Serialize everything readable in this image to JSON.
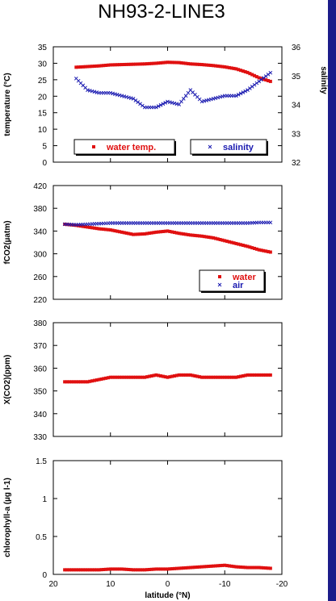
{
  "title": "NH93-2-LINE3",
  "colors": {
    "water": "#e01010",
    "salinity": "#1a1ab0",
    "air": "#1a1ab0",
    "sidebar": "#1c1c8a"
  },
  "x_axis": {
    "label": "latitude (°N)",
    "ticks": [
      "20",
      "10",
      "0",
      "-10",
      "-20"
    ],
    "range": [
      20,
      -20
    ]
  },
  "chart_data": [
    {
      "type": "scatter",
      "ylabel": "temperature (°C)",
      "ylabel_right": "salinity",
      "ylim": [
        0,
        35
      ],
      "yticks": [
        "0",
        "5",
        "10",
        "15",
        "20",
        "25",
        "30",
        "35"
      ],
      "ylim_right": [
        32,
        36
      ],
      "yticks_right": [
        "32",
        "33",
        "34",
        "35",
        "36"
      ],
      "legend": [
        {
          "label": "water temp.",
          "marker": "square"
        },
        {
          "label": "salinity",
          "marker": "x"
        }
      ],
      "series": [
        {
          "name": "water temp.",
          "axis": "left",
          "marker": "square",
          "x": [
            16,
            14,
            12,
            10,
            8,
            6,
            4,
            2,
            0,
            -2,
            -4,
            -6,
            -8,
            -10,
            -12,
            -14,
            -16,
            -18
          ],
          "y": [
            28.8,
            29.0,
            29.2,
            29.5,
            29.6,
            29.7,
            29.8,
            30.0,
            30.3,
            30.2,
            29.8,
            29.6,
            29.3,
            28.9,
            28.3,
            27.2,
            25.6,
            24.5
          ]
        },
        {
          "name": "salinity",
          "axis": "right",
          "marker": "x",
          "x": [
            16,
            14,
            12,
            10,
            8,
            6,
            4,
            2,
            0,
            -2,
            -4,
            -6,
            -8,
            -10,
            -12,
            -14,
            -16,
            -18
          ],
          "y": [
            34.9,
            34.5,
            34.4,
            34.4,
            34.3,
            34.2,
            33.9,
            33.9,
            34.1,
            34.0,
            34.5,
            34.1,
            34.2,
            34.3,
            34.3,
            34.5,
            34.8,
            35.1
          ]
        }
      ]
    },
    {
      "type": "scatter",
      "ylabel": "fCO2(µatm)",
      "ylim": [
        220,
        420
      ],
      "yticks": [
        "220",
        "260",
        "300",
        "340",
        "380",
        "420"
      ],
      "legend": [
        {
          "label": "water",
          "marker": "square"
        },
        {
          "label": "air",
          "marker": "x"
        }
      ],
      "series": [
        {
          "name": "water",
          "marker": "square",
          "x": [
            18,
            16,
            14,
            12,
            10,
            8,
            6,
            4,
            2,
            0,
            -2,
            -4,
            -6,
            -8,
            -10,
            -12,
            -14,
            -16,
            -18
          ],
          "y": [
            352,
            350,
            347,
            344,
            342,
            338,
            334,
            335,
            338,
            340,
            336,
            333,
            331,
            328,
            323,
            318,
            313,
            307,
            303
          ]
        },
        {
          "name": "air",
          "marker": "x",
          "x": [
            18,
            16,
            14,
            12,
            10,
            8,
            6,
            4,
            2,
            0,
            -2,
            -4,
            -6,
            -8,
            -10,
            -12,
            -14,
            -16,
            -18
          ],
          "y": [
            352,
            351,
            352,
            353,
            354,
            354,
            354,
            354,
            354,
            354,
            354,
            354,
            354,
            354,
            354,
            354,
            354,
            355,
            355
          ]
        }
      ]
    },
    {
      "type": "scatter",
      "ylabel": "X(CO2)(ppm)",
      "ylim": [
        330,
        380
      ],
      "yticks": [
        "330",
        "340",
        "350",
        "360",
        "370",
        "380"
      ],
      "series": [
        {
          "marker": "square",
          "x": [
            18,
            16,
            14,
            12,
            10,
            8,
            6,
            4,
            2,
            0,
            -2,
            -4,
            -6,
            -8,
            -10,
            -12,
            -14,
            -16,
            -18
          ],
          "y": [
            354,
            354,
            354,
            355,
            356,
            356,
            356,
            356,
            357,
            356,
            357,
            357,
            356,
            356,
            356,
            356,
            357,
            357,
            357
          ]
        }
      ]
    },
    {
      "type": "scatter",
      "ylabel": "chlorophyll-a (µg l-1)",
      "ylim": [
        0,
        1.5
      ],
      "yticks": [
        "0",
        "0.5",
        "1",
        "1.5"
      ],
      "series": [
        {
          "marker": "square",
          "x": [
            18,
            16,
            14,
            12,
            10,
            8,
            6,
            4,
            2,
            0,
            -2,
            -4,
            -6,
            -8,
            -10,
            -12,
            -14,
            -16,
            -18
          ],
          "y": [
            0.06,
            0.06,
            0.06,
            0.06,
            0.07,
            0.07,
            0.06,
            0.06,
            0.07,
            0.07,
            0.08,
            0.09,
            0.1,
            0.11,
            0.12,
            0.1,
            0.09,
            0.09,
            0.08
          ]
        }
      ]
    }
  ]
}
